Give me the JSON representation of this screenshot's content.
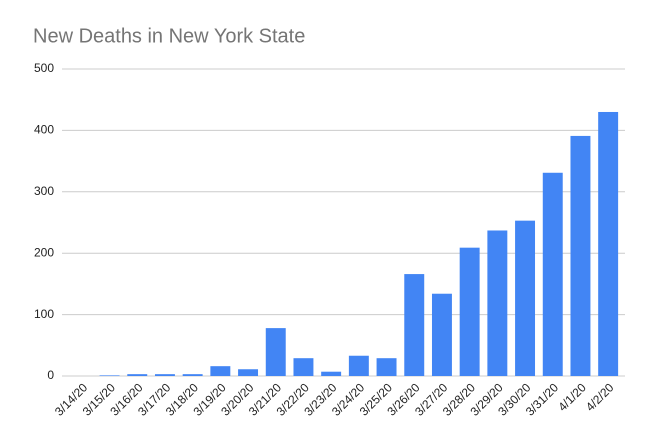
{
  "chart_data": {
    "type": "bar",
    "title": "New Deaths in New York State",
    "categories": [
      "3/14/20",
      "3/15/20",
      "3/16/20",
      "3/17/20",
      "3/18/20",
      "3/19/20",
      "3/20/20",
      "3/21/20",
      "3/22/20",
      "3/23/20",
      "3/24/20",
      "3/25/20",
      "3/26/20",
      "3/27/20",
      "3/28/20",
      "3/29/20",
      "3/30/20",
      "3/31/20",
      "4/1/20",
      "4/2/20"
    ],
    "values": [
      0,
      1,
      3,
      3,
      3,
      16,
      11,
      78,
      29,
      7,
      33,
      29,
      166,
      134,
      209,
      237,
      253,
      331,
      391,
      430
    ],
    "color": "#4285f4",
    "ylim": [
      0,
      500
    ],
    "yticks": [
      0,
      100,
      200,
      300,
      400,
      500
    ],
    "grid": true
  }
}
